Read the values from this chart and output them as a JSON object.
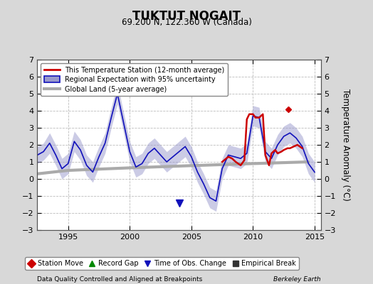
{
  "title": "TUKTUT NOGAIT",
  "subtitle": "69.200 N, 122.360 W (Canada)",
  "xlabel_left": "Data Quality Controlled and Aligned at Breakpoints",
  "xlabel_right": "Berkeley Earth",
  "ylabel": "Temperature Anomaly (°C)",
  "xlim": [
    1992.5,
    2015.5
  ],
  "ylim": [
    -3,
    7
  ],
  "yticks": [
    -3,
    -2,
    -1,
    0,
    1,
    2,
    3,
    4,
    5,
    6,
    7
  ],
  "xticks": [
    1995,
    2000,
    2005,
    2010,
    2015
  ],
  "bg_color": "#d8d8d8",
  "plot_bg_color": "#ffffff",
  "grid_color": "#bbbbbb",
  "blue_line_color": "#1111bb",
  "blue_fill_color": "#9999cc",
  "red_line_color": "#cc0000",
  "gray_line_color": "#aaaaaa",
  "legend_items": [
    {
      "label": "This Temperature Station (12-month average)",
      "color": "#cc0000",
      "lw": 2
    },
    {
      "label": "Regional Expectation with 95% uncertainty",
      "color": "#1111bb",
      "lw": 2
    },
    {
      "label": "Global Land (5-year average)",
      "color": "#aaaaaa",
      "lw": 3
    }
  ],
  "bottom_legend": [
    {
      "label": "Station Move",
      "marker": "D",
      "color": "#cc0000"
    },
    {
      "label": "Record Gap",
      "marker": "^",
      "color": "#008800"
    },
    {
      "label": "Time of Obs. Change",
      "marker": "v",
      "color": "#1111bb"
    },
    {
      "label": "Empirical Break",
      "marker": "s",
      "color": "#333333"
    }
  ],
  "blue_x": [
    1992.5,
    1993.0,
    1993.5,
    1994.0,
    1994.5,
    1995.0,
    1995.5,
    1996.0,
    1996.5,
    1997.0,
    1997.5,
    1998.0,
    1998.5,
    1999.0,
    1999.5,
    2000.0,
    2000.5,
    2001.0,
    2001.5,
    2002.0,
    2002.5,
    2003.0,
    2003.5,
    2004.0,
    2004.5,
    2005.0,
    2005.5,
    2006.0,
    2006.5,
    2007.0,
    2007.5,
    2008.0,
    2008.5,
    2009.0,
    2009.5,
    2010.0,
    2010.5,
    2011.0,
    2011.5,
    2012.0,
    2012.5,
    2013.0,
    2013.5,
    2014.0,
    2014.5,
    2015.0
  ],
  "blue_y": [
    1.4,
    1.6,
    2.1,
    1.4,
    0.6,
    0.9,
    2.2,
    1.7,
    0.8,
    0.4,
    1.3,
    2.1,
    3.6,
    5.0,
    3.3,
    1.6,
    0.7,
    0.9,
    1.5,
    1.8,
    1.4,
    1.0,
    1.3,
    1.6,
    1.9,
    1.3,
    0.4,
    -0.3,
    -1.1,
    -1.3,
    0.6,
    1.4,
    1.3,
    1.2,
    1.5,
    3.7,
    3.6,
    1.6,
    1.2,
    2.0,
    2.5,
    2.7,
    2.4,
    1.9,
    0.9,
    0.4
  ],
  "blue_upper": [
    1.9,
    2.1,
    2.7,
    2.0,
    1.2,
    1.5,
    2.8,
    2.3,
    1.4,
    1.0,
    1.9,
    2.7,
    4.2,
    5.6,
    3.9,
    2.2,
    1.3,
    1.5,
    2.1,
    2.4,
    2.0,
    1.6,
    1.9,
    2.2,
    2.5,
    1.9,
    1.0,
    0.3,
    -0.5,
    -0.7,
    1.2,
    2.0,
    1.9,
    1.8,
    2.1,
    4.3,
    4.2,
    2.2,
    1.8,
    2.6,
    3.1,
    3.3,
    3.0,
    2.5,
    1.5,
    1.0
  ],
  "blue_lower": [
    0.9,
    1.1,
    1.5,
    0.8,
    0.0,
    0.3,
    1.6,
    1.1,
    0.2,
    -0.2,
    0.7,
    1.5,
    3.0,
    4.4,
    2.7,
    1.0,
    0.1,
    0.3,
    0.9,
    1.2,
    0.8,
    0.4,
    0.7,
    1.0,
    1.3,
    0.7,
    -0.2,
    -0.9,
    -1.7,
    -1.9,
    0.0,
    0.8,
    0.7,
    0.6,
    0.9,
    3.1,
    3.0,
    1.0,
    0.6,
    1.4,
    1.9,
    2.1,
    1.8,
    1.3,
    0.3,
    -0.2
  ],
  "red_x": [
    2007.5,
    2008.0,
    2008.3,
    2008.6,
    2009.0,
    2009.3,
    2009.5,
    2009.7,
    2010.0,
    2010.2,
    2010.5,
    2010.8,
    2011.0,
    2011.3,
    2011.5,
    2011.8,
    2012.0,
    2012.3,
    2012.5,
    2012.8,
    2013.0,
    2013.3,
    2013.6,
    2014.0
  ],
  "red_y": [
    1.0,
    1.3,
    1.2,
    1.0,
    0.8,
    1.1,
    3.5,
    3.8,
    3.8,
    3.6,
    3.6,
    3.8,
    1.4,
    0.8,
    1.5,
    1.7,
    1.5,
    1.6,
    1.7,
    1.8,
    1.8,
    1.9,
    2.0,
    1.8
  ],
  "red_dot_x": [
    2012.85
  ],
  "red_dot_y": [
    4.1
  ],
  "gray_x": [
    1992.5,
    1995.0,
    2000.0,
    2005.0,
    2010.0,
    2014.5
  ],
  "gray_y": [
    0.3,
    0.5,
    0.65,
    0.78,
    0.9,
    1.0
  ],
  "blue_marker_x": [
    2004.0
  ],
  "blue_marker_y": [
    -1.4
  ]
}
